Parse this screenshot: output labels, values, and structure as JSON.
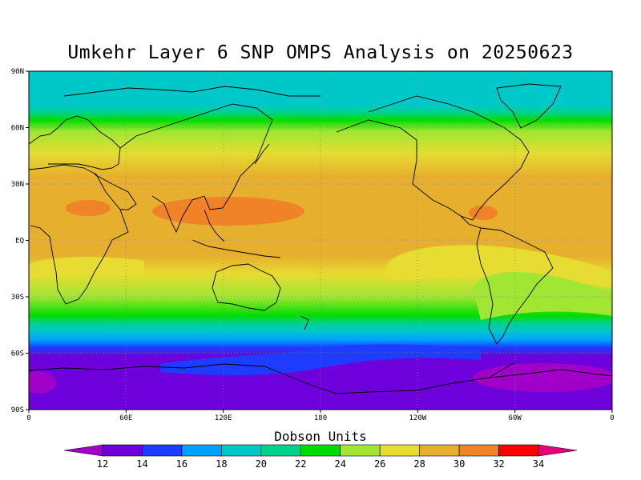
{
  "title": "Umkehr Layer 6 SNP OMPS Analysis on 20250623",
  "lat_ticks": [
    {
      "label": "90N",
      "lat": 90
    },
    {
      "label": "60N",
      "lat": 60
    },
    {
      "label": "30N",
      "lat": 30
    },
    {
      "label": "EQ",
      "lat": 0
    },
    {
      "label": "30S",
      "lat": -30
    },
    {
      "label": "60S",
      "lat": -60
    },
    {
      "label": "90S",
      "lat": -90
    }
  ],
  "lon_ticks": [
    {
      "label": "0",
      "lon": 0
    },
    {
      "label": "60E",
      "lon": 60
    },
    {
      "label": "120E",
      "lon": 120
    },
    {
      "label": "180",
      "lon": 180
    },
    {
      "label": "120W",
      "lon": 240
    },
    {
      "label": "60W",
      "lon": 300
    },
    {
      "label": "0",
      "lon": 360
    }
  ],
  "colorbar": {
    "title": "Dobson Units",
    "labels": [
      "12",
      "14",
      "16",
      "18",
      "20",
      "22",
      "24",
      "26",
      "28",
      "30",
      "32",
      "34"
    ],
    "colors": [
      "#a000c8",
      "#6e00dc",
      "#1e3cff",
      "#00a0ff",
      "#00c8c8",
      "#00d28c",
      "#00dc00",
      "#a0e632",
      "#e6dc32",
      "#e6af2d",
      "#f08228",
      "#fa0000",
      "#e6007a"
    ]
  },
  "bands": [
    {
      "lat": 90,
      "level": 4
    },
    {
      "lat": 72,
      "level": 4
    },
    {
      "lat": 68,
      "level": 5
    },
    {
      "lat": 64,
      "level": 6
    },
    {
      "lat": 58,
      "level": 7
    },
    {
      "lat": 46,
      "level": 8
    },
    {
      "lat": 34,
      "level": 9
    },
    {
      "lat": 10,
      "level": 9
    },
    {
      "lat": -8,
      "level": 9
    },
    {
      "lat": -18,
      "level": 8
    },
    {
      "lat": -30,
      "level": 7
    },
    {
      "lat": -40,
      "level": 6
    },
    {
      "lat": -44,
      "level": 5
    },
    {
      "lat": -48,
      "level": 4
    },
    {
      "lat": -53,
      "level": 3
    },
    {
      "lat": -57,
      "level": 2
    },
    {
      "lat": -62,
      "level": 1
    },
    {
      "lat": -90,
      "level": 1
    }
  ]
}
